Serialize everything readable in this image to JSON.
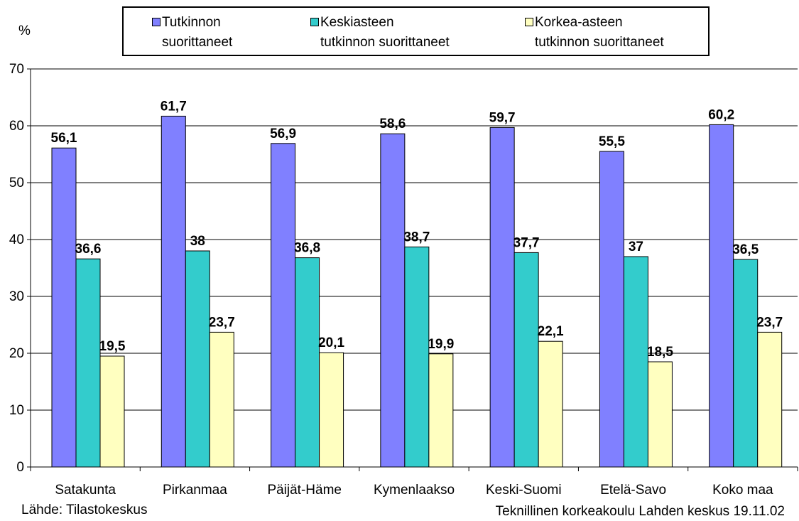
{
  "chart_data": {
    "type": "bar",
    "title": "",
    "ylabel": "%",
    "xlabel": "",
    "ylim": [
      0,
      70
    ],
    "yticks": [
      0,
      10,
      20,
      30,
      40,
      50,
      60,
      70
    ],
    "grid": true,
    "legend_position": "top",
    "categories": [
      "Satakunta",
      "Pirkanmaa",
      "Päijät-Häme",
      "Kymenlaakso",
      "Keski-Suomi",
      "Etelä-Savo",
      "Koko maa"
    ],
    "series": [
      {
        "name": [
          "Tutkinnon",
          "suorittaneet"
        ],
        "color": "#8080ff",
        "values": [
          56.1,
          61.7,
          56.9,
          58.6,
          59.7,
          55.5,
          60.2
        ],
        "labels": [
          "56,1",
          "61,7",
          "56,9",
          "58,6",
          "59,7",
          "55,5",
          "60,2"
        ]
      },
      {
        "name": [
          "Keskiasteen",
          "tutkinnon suorittaneet"
        ],
        "color": "#33cccc",
        "values": [
          36.6,
          38,
          36.8,
          38.7,
          37.7,
          37,
          36.5
        ],
        "labels": [
          "36,6",
          "38",
          "36,8",
          "38,7",
          "37,7",
          "37",
          "36,5"
        ]
      },
      {
        "name": [
          "Korkea-asteen",
          "tutkinnon suorittaneet"
        ],
        "color": "#ffffc0",
        "values": [
          19.5,
          23.7,
          20.1,
          19.9,
          22.1,
          18.5,
          23.7
        ],
        "labels": [
          "19,5",
          "23,7",
          "20,1",
          "19,9",
          "22,1",
          "18,5",
          "23,7"
        ]
      }
    ]
  },
  "footer": {
    "source": "Lähde: Tilastokeskus",
    "credit": "Teknillinen korkeakoulu Lahden keskus 19.11.02"
  }
}
